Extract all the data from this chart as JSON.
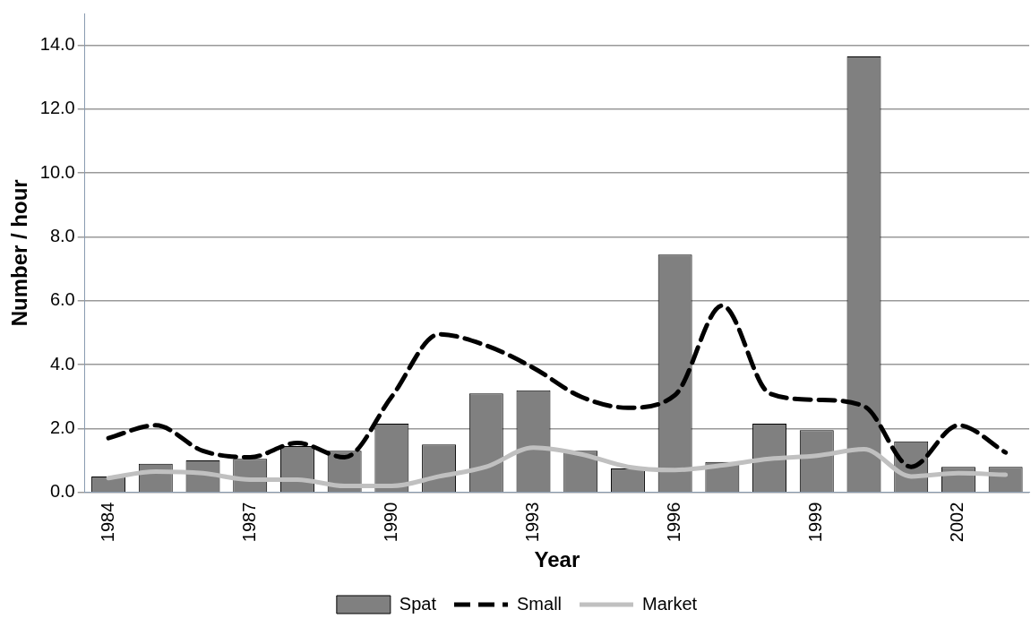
{
  "chart_data": {
    "type": "bar",
    "xlabel": "Year",
    "ylabel": "Number / hour",
    "categories": [
      "1984",
      null,
      null,
      "1987",
      null,
      null,
      "1990",
      null,
      null,
      "1993",
      null,
      null,
      "1996",
      null,
      null,
      "1999",
      null,
      null,
      "2002",
      null
    ],
    "series": [
      {
        "name": "Spat",
        "color": "#808080",
        "values": [
          0.5,
          0.9,
          1.0,
          1.05,
          1.45,
          1.3,
          2.15,
          1.5,
          3.1,
          3.2,
          1.3,
          0.75,
          7.45,
          0.95,
          2.15,
          1.95,
          13.65,
          1.6,
          0.8,
          0.8
        ]
      },
      {
        "name": "Small",
        "type": "line",
        "color": "#000000",
        "line_style": "dashed",
        "values": [
          1.7,
          2.1,
          1.3,
          1.1,
          1.55,
          1.1,
          3.0,
          4.95,
          4.6,
          3.9,
          3.0,
          2.65,
          3.05,
          5.85,
          3.1,
          2.9,
          2.7,
          0.8,
          2.1,
          1.25
        ]
      },
      {
        "name": "Market",
        "type": "line",
        "color": "#c0c0c0",
        "line_style": "solid",
        "values": [
          0.45,
          0.65,
          0.6,
          0.4,
          0.4,
          0.2,
          0.2,
          0.5,
          0.8,
          1.4,
          1.2,
          0.8,
          0.7,
          0.85,
          1.05,
          1.15,
          1.35,
          0.5,
          0.6,
          0.55
        ]
      }
    ],
    "ylim": [
      0,
      15
    ],
    "yticks": [
      {
        "value": 0,
        "label": "0.0"
      },
      {
        "value": 2,
        "label": "2.0"
      },
      {
        "value": 4,
        "label": "4.0"
      },
      {
        "value": 6,
        "label": "6.0"
      },
      {
        "value": 8,
        "label": "8.0"
      },
      {
        "value": 10,
        "label": "10.0"
      },
      {
        "value": 12,
        "label": "12.0"
      },
      {
        "value": 14,
        "label": "14.0"
      }
    ],
    "grid": "y",
    "legend": "bottom",
    "marker": "none"
  }
}
